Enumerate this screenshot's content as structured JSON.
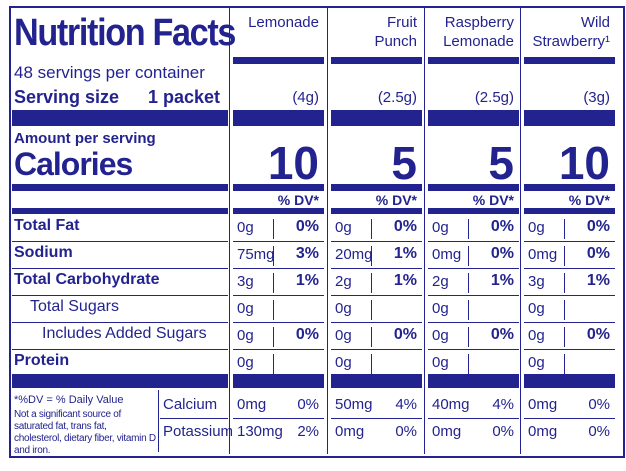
{
  "header": {
    "title": "Nutrition Facts",
    "servings": "48 servings per container",
    "serving_size_label": "Serving size",
    "serving_size_value": "1 packet",
    "amount_per_serving": "Amount per serving",
    "calories_label": "Calories",
    "dv_note": "*%DV = % Daily Value",
    "footnote": "Not a significant source of saturated fat, trans fat, cholesterol, dietary fiber, vitamin D and iron."
  },
  "products": [
    {
      "name": [
        "Lemonade"
      ],
      "serving": "(4g)",
      "calories": "10",
      "dv_header": "% DV*"
    },
    {
      "name": [
        "Fruit",
        "Punch"
      ],
      "serving": "(2.5g)",
      "calories": "5",
      "dv_header": "% DV*"
    },
    {
      "name": [
        "Raspberry",
        "Lemonade"
      ],
      "serving": "(2.5g)",
      "calories": "5",
      "dv_header": "% DV*"
    },
    {
      "name": [
        "Wild",
        "Strawberry¹"
      ],
      "serving": "(3g)",
      "calories": "10",
      "dv_header": "% DV*"
    }
  ],
  "nutrients": [
    {
      "label": "Total Fat",
      "style": "main",
      "values": [
        {
          "amount": "0g",
          "dv": "0%"
        },
        {
          "amount": "0g",
          "dv": "0%"
        },
        {
          "amount": "0g",
          "dv": "0%"
        },
        {
          "amount": "0g",
          "dv": "0%"
        }
      ]
    },
    {
      "label": "Sodium",
      "style": "main",
      "values": [
        {
          "amount": "75mg",
          "dv": "3%"
        },
        {
          "amount": "20mg",
          "dv": "1%"
        },
        {
          "amount": "0mg",
          "dv": "0%"
        },
        {
          "amount": "0mg",
          "dv": "0%"
        }
      ]
    },
    {
      "label": "Total Carbohydrate",
      "style": "main",
      "values": [
        {
          "amount": "3g",
          "dv": "1%"
        },
        {
          "amount": "2g",
          "dv": "1%"
        },
        {
          "amount": "2g",
          "dv": "1%"
        },
        {
          "amount": "3g",
          "dv": "1%"
        }
      ]
    },
    {
      "label": "Total Sugars",
      "style": "sub",
      "values": [
        {
          "amount": "0g",
          "dv": null
        },
        {
          "amount": "0g",
          "dv": null
        },
        {
          "amount": "0g",
          "dv": null
        },
        {
          "amount": "0g",
          "dv": null
        }
      ]
    },
    {
      "label": "Includes Added Sugars",
      "style": "subsub",
      "values": [
        {
          "amount": "0g",
          "dv": "0%"
        },
        {
          "amount": "0g",
          "dv": "0%"
        },
        {
          "amount": "0g",
          "dv": "0%"
        },
        {
          "amount": "0g",
          "dv": "0%"
        }
      ]
    },
    {
      "label": "Protein",
      "style": "main",
      "values": [
        {
          "amount": "0g",
          "dv": null
        },
        {
          "amount": "0g",
          "dv": null
        },
        {
          "amount": "0g",
          "dv": null
        },
        {
          "amount": "0g",
          "dv": null
        }
      ]
    }
  ],
  "vitamins": [
    {
      "label": "Calcium",
      "values": [
        {
          "amount": "0mg",
          "dv": "0%"
        },
        {
          "amount": "50mg",
          "dv": "4%"
        },
        {
          "amount": "40mg",
          "dv": "4%"
        },
        {
          "amount": "0mg",
          "dv": "0%"
        }
      ]
    },
    {
      "label": "Potassium",
      "values": [
        {
          "amount": "130mg",
          "dv": "2%"
        },
        {
          "amount": "0mg",
          "dv": "0%"
        },
        {
          "amount": "0mg",
          "dv": "0%"
        },
        {
          "amount": "0mg",
          "dv": "0%"
        }
      ]
    }
  ]
}
